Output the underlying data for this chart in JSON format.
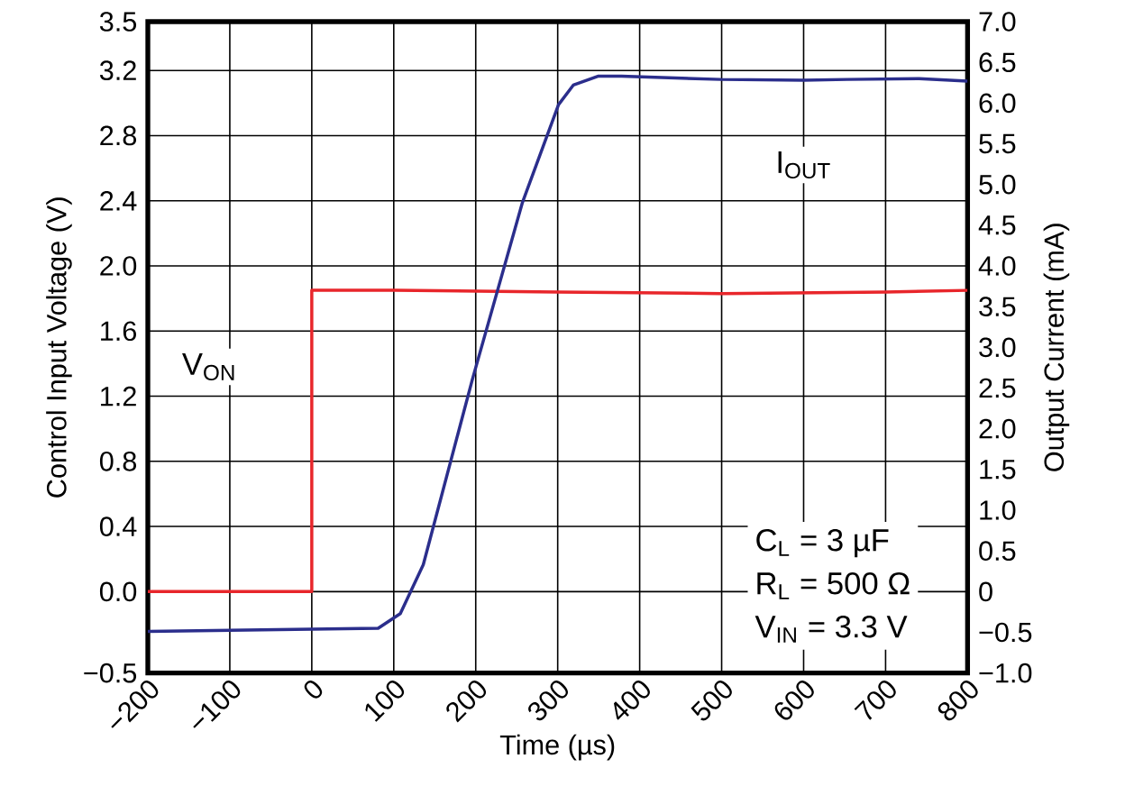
{
  "chart_data": {
    "type": "line",
    "xlabel": "Time (µs)",
    "ylabel": "Control Input Voltage  (V)",
    "y2label": "Output Current (mA)",
    "xlim": [
      -200,
      800
    ],
    "xticks": [
      {
        "value": -200,
        "label": "−200"
      },
      {
        "value": -100,
        "label": "−100"
      },
      0,
      100,
      200,
      300,
      400,
      500,
      600,
      700,
      800
    ],
    "ylim": [
      -0.5,
      3.5
    ],
    "yticks": [
      {
        "value": -0.5,
        "label": "−0.5"
      },
      {
        "value": 0,
        "label": "0.0"
      },
      0.4,
      0.8,
      1.2,
      1.6,
      {
        "value": 2,
        "label": "2.0"
      },
      2.4,
      2.8,
      3.2,
      3.5
    ],
    "y2lim": [
      -1,
      7
    ],
    "y2ticks": [
      {
        "value": -1,
        "label": "−1.0"
      },
      {
        "value": -0.5,
        "label": "−0.5"
      },
      0,
      0.5,
      {
        "value": 1,
        "label": "1.0"
      },
      1.5,
      {
        "value": 2,
        "label": "2.0"
      },
      2.5,
      {
        "value": 3,
        "label": "3.0"
      },
      3.5,
      {
        "value": 4,
        "label": "4.0"
      },
      4.5,
      {
        "value": 5,
        "label": "5.0"
      },
      5.5,
      {
        "value": 6,
        "label": "6.0"
      },
      6.5,
      {
        "value": 7,
        "label": "7.0"
      }
    ],
    "grid": true,
    "series": [
      {
        "name": "V$_{ON}$",
        "color": "#e8262b",
        "x": [
          -200,
          0,
          0,
          100,
          300,
          500,
          700,
          800
        ],
        "values": [
          0.0,
          0.0,
          1.85,
          1.85,
          1.84,
          1.83,
          1.84,
          1.85
        ]
      },
      {
        "name": "I$_{OUT}$",
        "color": "#2b2e8c",
        "axis": "y2",
        "x": [
          -200,
          81,
          108,
          136,
          196,
          257,
          301,
          319,
          349,
          378,
          499,
          600,
          653,
          741,
          800
        ],
        "values": [
          -0.49,
          -0.45,
          -0.27,
          0.33,
          2.61,
          4.78,
          5.98,
          6.22,
          6.33,
          6.33,
          6.29,
          6.28,
          6.29,
          6.3,
          6.27
        ]
      }
    ],
    "annotations": [
      "C$_{L}$ = 3 µF",
      "R$_{L}$ = 500 Ω",
      "V$_{IN}$ = 3.3 V"
    ]
  }
}
